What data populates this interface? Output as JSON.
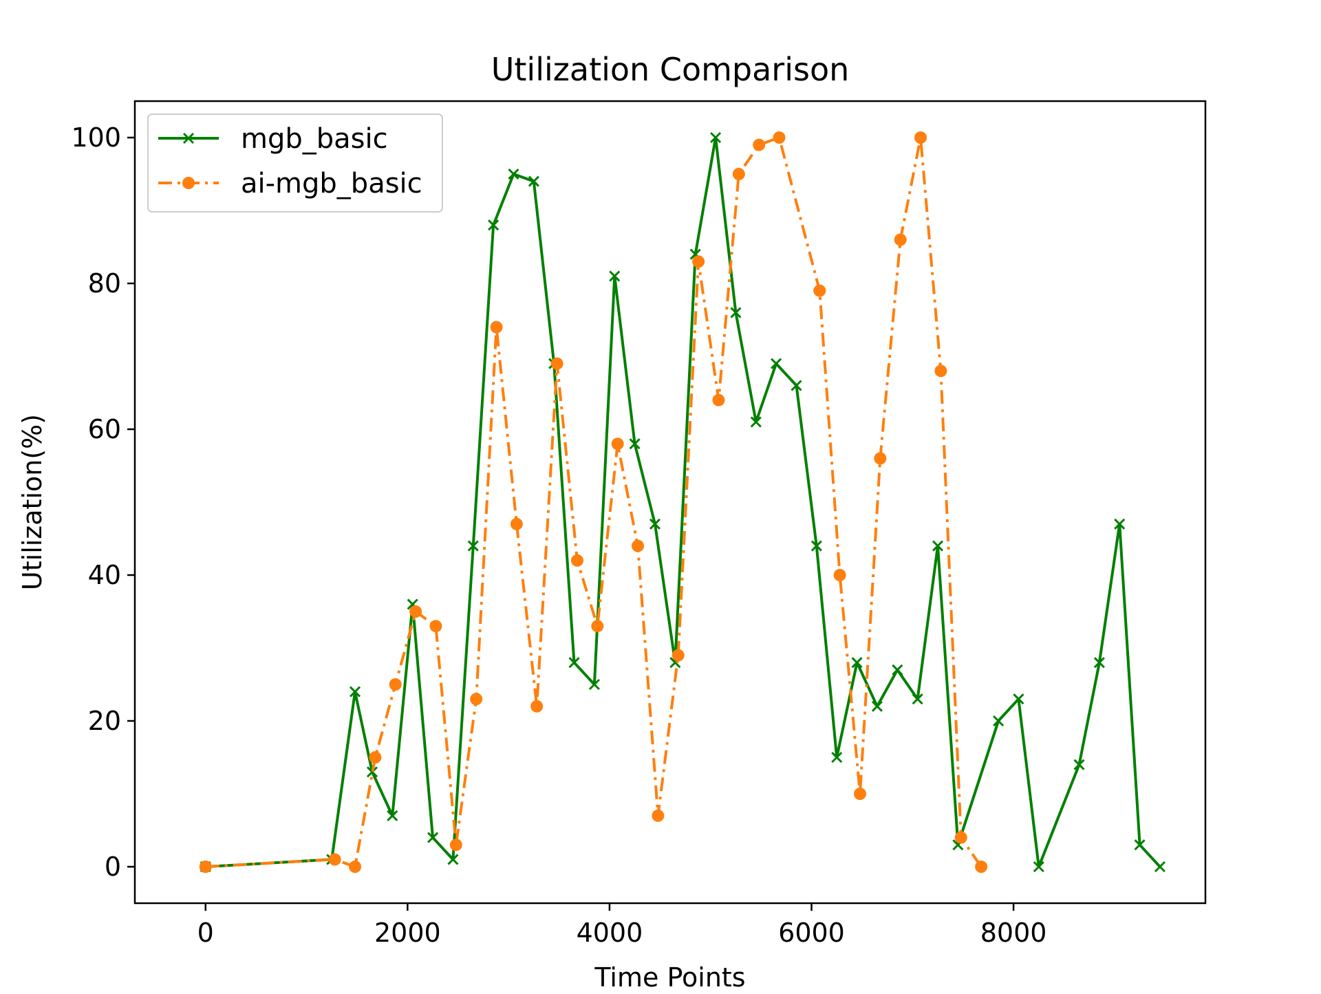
{
  "chart_data": {
    "type": "line",
    "title": "Utilization Comparison",
    "xlabel": "Time Points",
    "ylabel": "Utilization(%)",
    "xlim": [
      -700,
      9900
    ],
    "ylim": [
      -5,
      105
    ],
    "xticks": [
      0,
      2000,
      4000,
      6000,
      8000
    ],
    "yticks": [
      0,
      20,
      40,
      60,
      80,
      100
    ],
    "grid": false,
    "legend_position": "upper-left",
    "series": [
      {
        "name": "mgb_basic",
        "color": "#008000",
        "line_style": "solid",
        "marker": "x",
        "x": [
          0,
          1250,
          1480,
          1650,
          1850,
          2050,
          2250,
          2450,
          2650,
          2850,
          3050,
          3250,
          3450,
          3650,
          3850,
          4050,
          4250,
          4450,
          4650,
          4850,
          5050,
          5250,
          5450,
          5650,
          5850,
          6050,
          6250,
          6450,
          6650,
          6850,
          7050,
          7250,
          7450,
          7850,
          8050,
          8250,
          8650,
          8850,
          9050,
          9250,
          9450
        ],
        "y": [
          0,
          1,
          24,
          13,
          7,
          36,
          4,
          1,
          44,
          88,
          95,
          94,
          69,
          28,
          25,
          81,
          58,
          47,
          28,
          84,
          100,
          76,
          61,
          69,
          66,
          44,
          15,
          28,
          22,
          27,
          23,
          44,
          3,
          20,
          23,
          0,
          14,
          28,
          47,
          3,
          0
        ]
      },
      {
        "name": "ai-mgb_basic",
        "color": "#ff7f0e",
        "line_style": "dashdot",
        "marker": "o",
        "x": [
          0,
          1280,
          1480,
          1680,
          1880,
          2080,
          2280,
          2480,
          2680,
          2880,
          3080,
          3280,
          3480,
          3680,
          3880,
          4080,
          4280,
          4480,
          4680,
          4880,
          5080,
          5280,
          5480,
          5680,
          6080,
          6280,
          6480,
          6680,
          6880,
          7080,
          7280,
          7480,
          7680
        ],
        "y": [
          0,
          1,
          0,
          15,
          25,
          35,
          33,
          3,
          23,
          74,
          47,
          22,
          69,
          42,
          33,
          58,
          44,
          7,
          29,
          83,
          64,
          95,
          99,
          100,
          79,
          40,
          10,
          56,
          86,
          100,
          68,
          4,
          0
        ]
      }
    ]
  }
}
